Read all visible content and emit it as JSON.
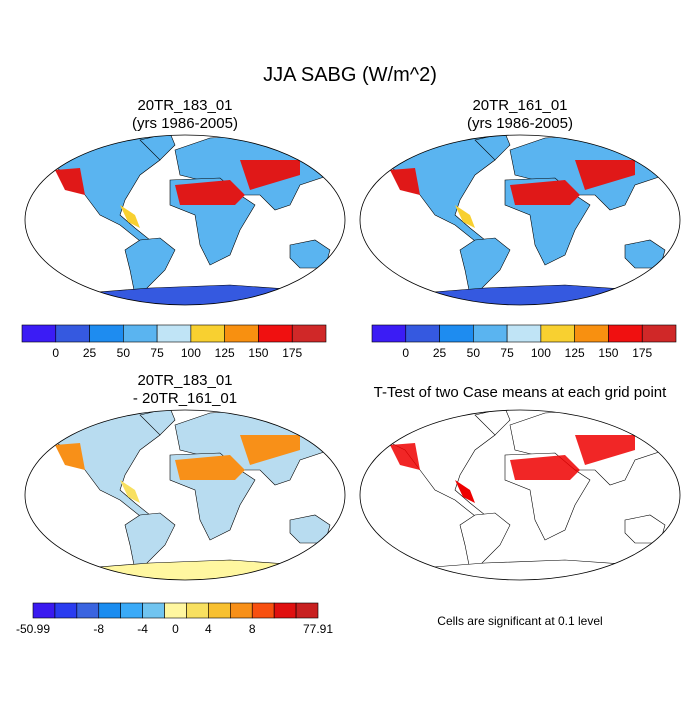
{
  "title": "JJA SABG (W/m^2)",
  "panels": [
    {
      "title": [
        "20TR_183_01",
        "(yrs 1986-2005)"
      ]
    },
    {
      "title": [
        "20TR_161_01",
        "(yrs 1986-2005)"
      ]
    },
    {
      "title": [
        "20TR_183_01",
        "- 20TR_161_01"
      ]
    },
    {
      "title": [
        "T-Test of two Case means at each grid point"
      ]
    }
  ],
  "colorbars": [
    {
      "colors": [
        "#3b1cf5",
        "#3559e0",
        "#1e8cf0",
        "#5ab4f0",
        "#c0e4f6",
        "#f8d030",
        "#f89010",
        "#f01010",
        "#d02828"
      ],
      "labels": [
        0,
        25,
        50,
        75,
        100,
        125,
        150,
        175
      ]
    },
    {
      "colors": [
        "#3b1cf5",
        "#3559e0",
        "#1e8cf0",
        "#5ab4f0",
        "#c0e4f6",
        "#f8d030",
        "#f89010",
        "#f01010",
        "#d02828"
      ],
      "labels": [
        0,
        25,
        50,
        75,
        100,
        125,
        150,
        175
      ]
    },
    {
      "colors": [
        "#3a1af0",
        "#2a3cf0",
        "#3a64e0",
        "#1a8cf0",
        "#3aaaf8",
        "#70c4f0",
        "#fff7a0",
        "#f8e060",
        "#f8c030",
        "#f89018",
        "#f85010",
        "#e01010",
        "#c82020"
      ],
      "labels": [
        -50.99,
        -8,
        -4,
        0,
        4,
        8,
        77.91
      ]
    }
  ],
  "note": "Cells are significant at 0.1 level"
}
